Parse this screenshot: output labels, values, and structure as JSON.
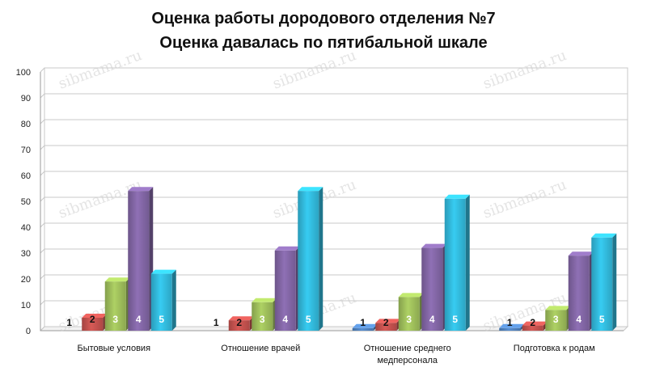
{
  "chart_data": {
    "type": "bar",
    "title": [
      "Оценка работы дородового отделения №7",
      "Оценка давалась по пятибальной шкале"
    ],
    "categories": [
      [
        "Бытовые условия"
      ],
      [
        "Отношение врачей"
      ],
      [
        "Отношение среднего",
        "медперсонала"
      ],
      [
        "Подготовка к родам"
      ]
    ],
    "series": [
      {
        "label": "1",
        "color": "#4f81bd",
        "label_color": "#111111",
        "values": [
          0,
          0,
          1,
          1
        ]
      },
      {
        "label": "2",
        "color": "#c0504d",
        "label_color": "#111111",
        "values": [
          5,
          4,
          3,
          2
        ]
      },
      {
        "label": "3",
        "color": "#9bbb59",
        "label_color": "#ffffff",
        "values": [
          19,
          11,
          13,
          8
        ]
      },
      {
        "label": "4",
        "color": "#8064a2",
        "label_color": "#ffffff",
        "values": [
          54,
          31,
          32,
          29
        ]
      },
      {
        "label": "5",
        "color": "#31b6d8",
        "label_color": "#ffffff",
        "values": [
          22,
          54,
          51,
          36
        ]
      }
    ],
    "ylim": [
      0,
      100
    ],
    "yticks": [
      0,
      10,
      20,
      30,
      40,
      50,
      60,
      70,
      80,
      90,
      100
    ],
    "grid": true,
    "legend": "none"
  },
  "watermark": "sibmama.ru"
}
